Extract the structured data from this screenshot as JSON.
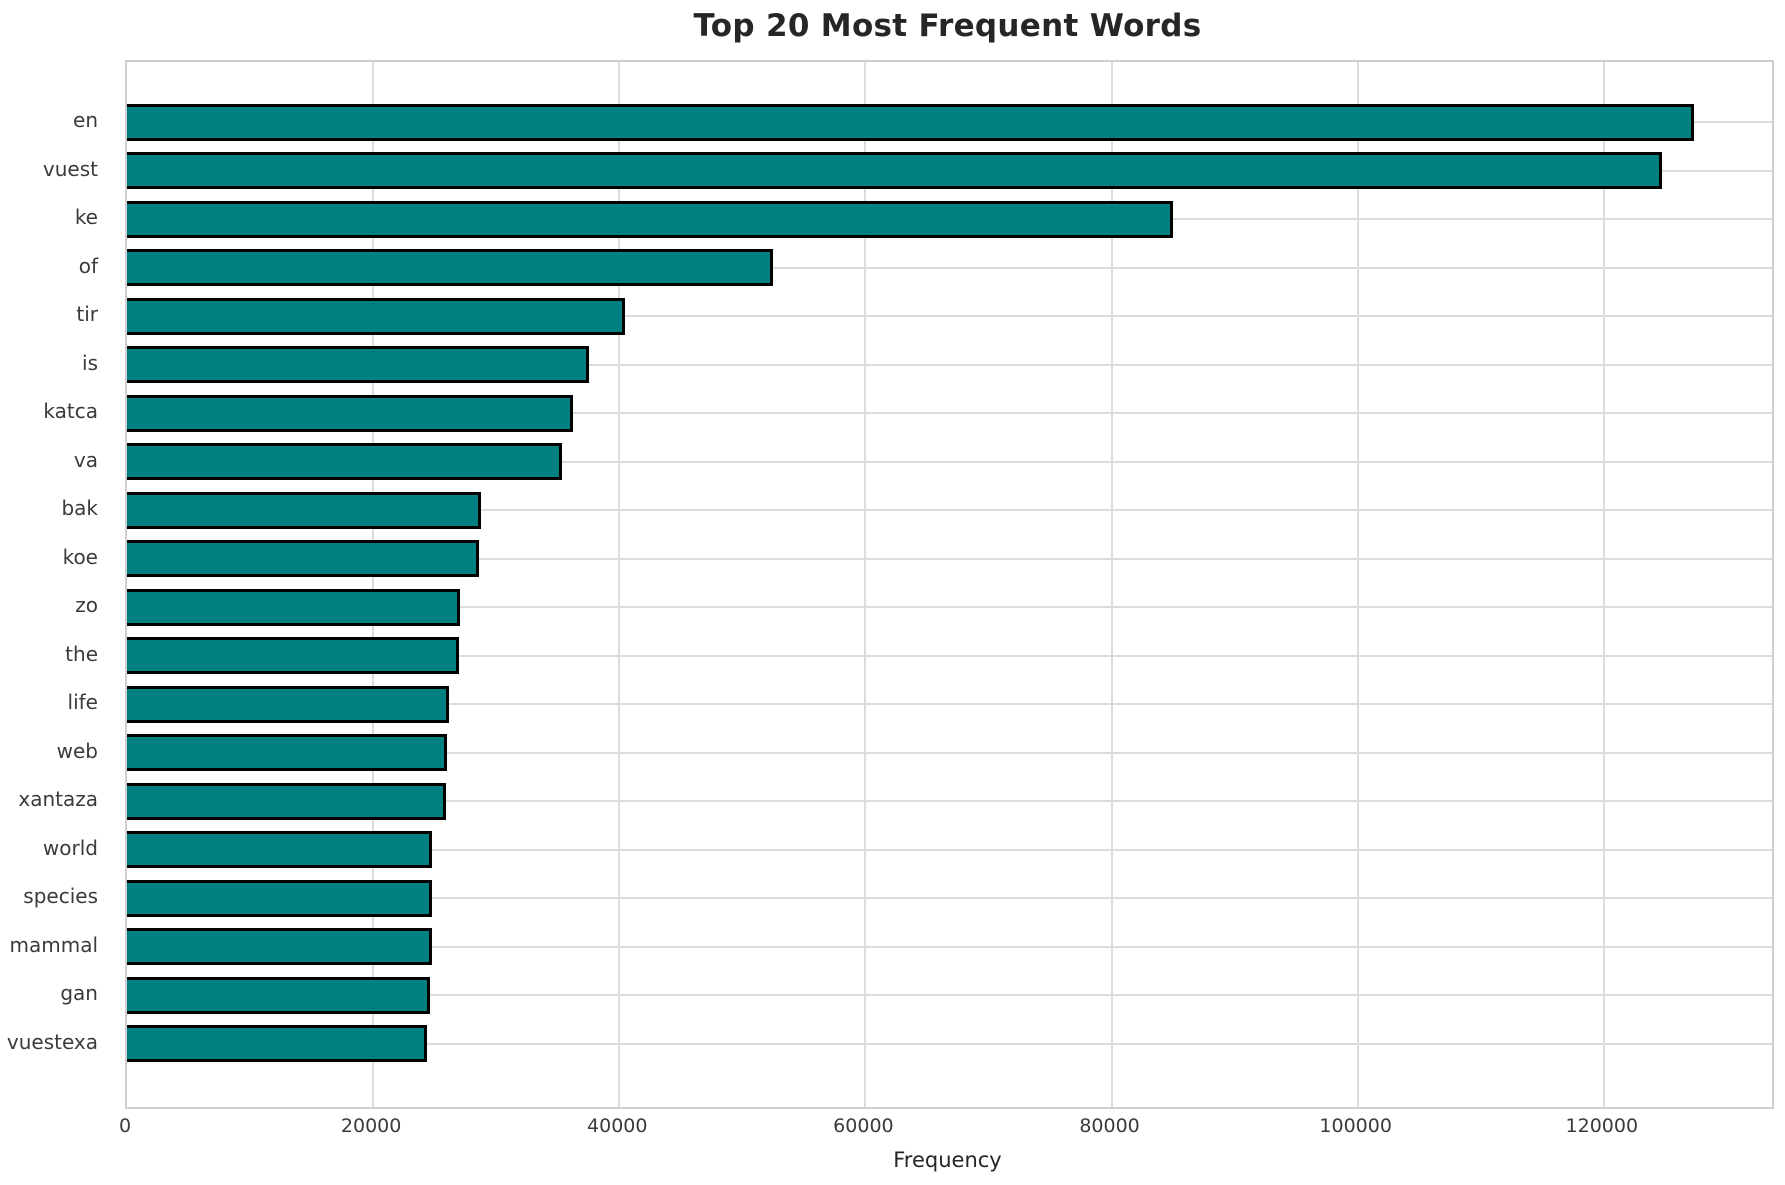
{
  "chart_data": {
    "type": "bar",
    "orientation": "horizontal",
    "title": "Top 20 Most Frequent Words",
    "xlabel": "Frequency",
    "ylabel": "",
    "categories": [
      "en",
      "vuest",
      "ke",
      "of",
      "tir",
      "is",
      "katca",
      "va",
      "bak",
      "koe",
      "zo",
      "the",
      "life",
      "web",
      "xantaza",
      "world",
      "species",
      "mammal",
      "gan",
      "vuestexa"
    ],
    "values": [
      127300,
      124700,
      85000,
      52500,
      40500,
      37500,
      36200,
      35350,
      28750,
      28600,
      27050,
      26950,
      26200,
      26000,
      25950,
      24820,
      24800,
      24780,
      24600,
      24350
    ],
    "xticks": [
      0,
      20000,
      40000,
      60000,
      80000,
      100000,
      120000
    ],
    "xtick_labels": [
      "0",
      "20000",
      "40000",
      "60000",
      "80000",
      "100000",
      "120000"
    ],
    "xlim": [
      0,
      133665
    ],
    "grid": true,
    "legend_position": "none",
    "bar_color": "#008080",
    "bar_edge_color": "#000000",
    "grid_color": "#dcdcdc",
    "spine_color": "#cfcfcf",
    "title_color": "#262626",
    "tick_label_color": "#3b3b3b"
  }
}
